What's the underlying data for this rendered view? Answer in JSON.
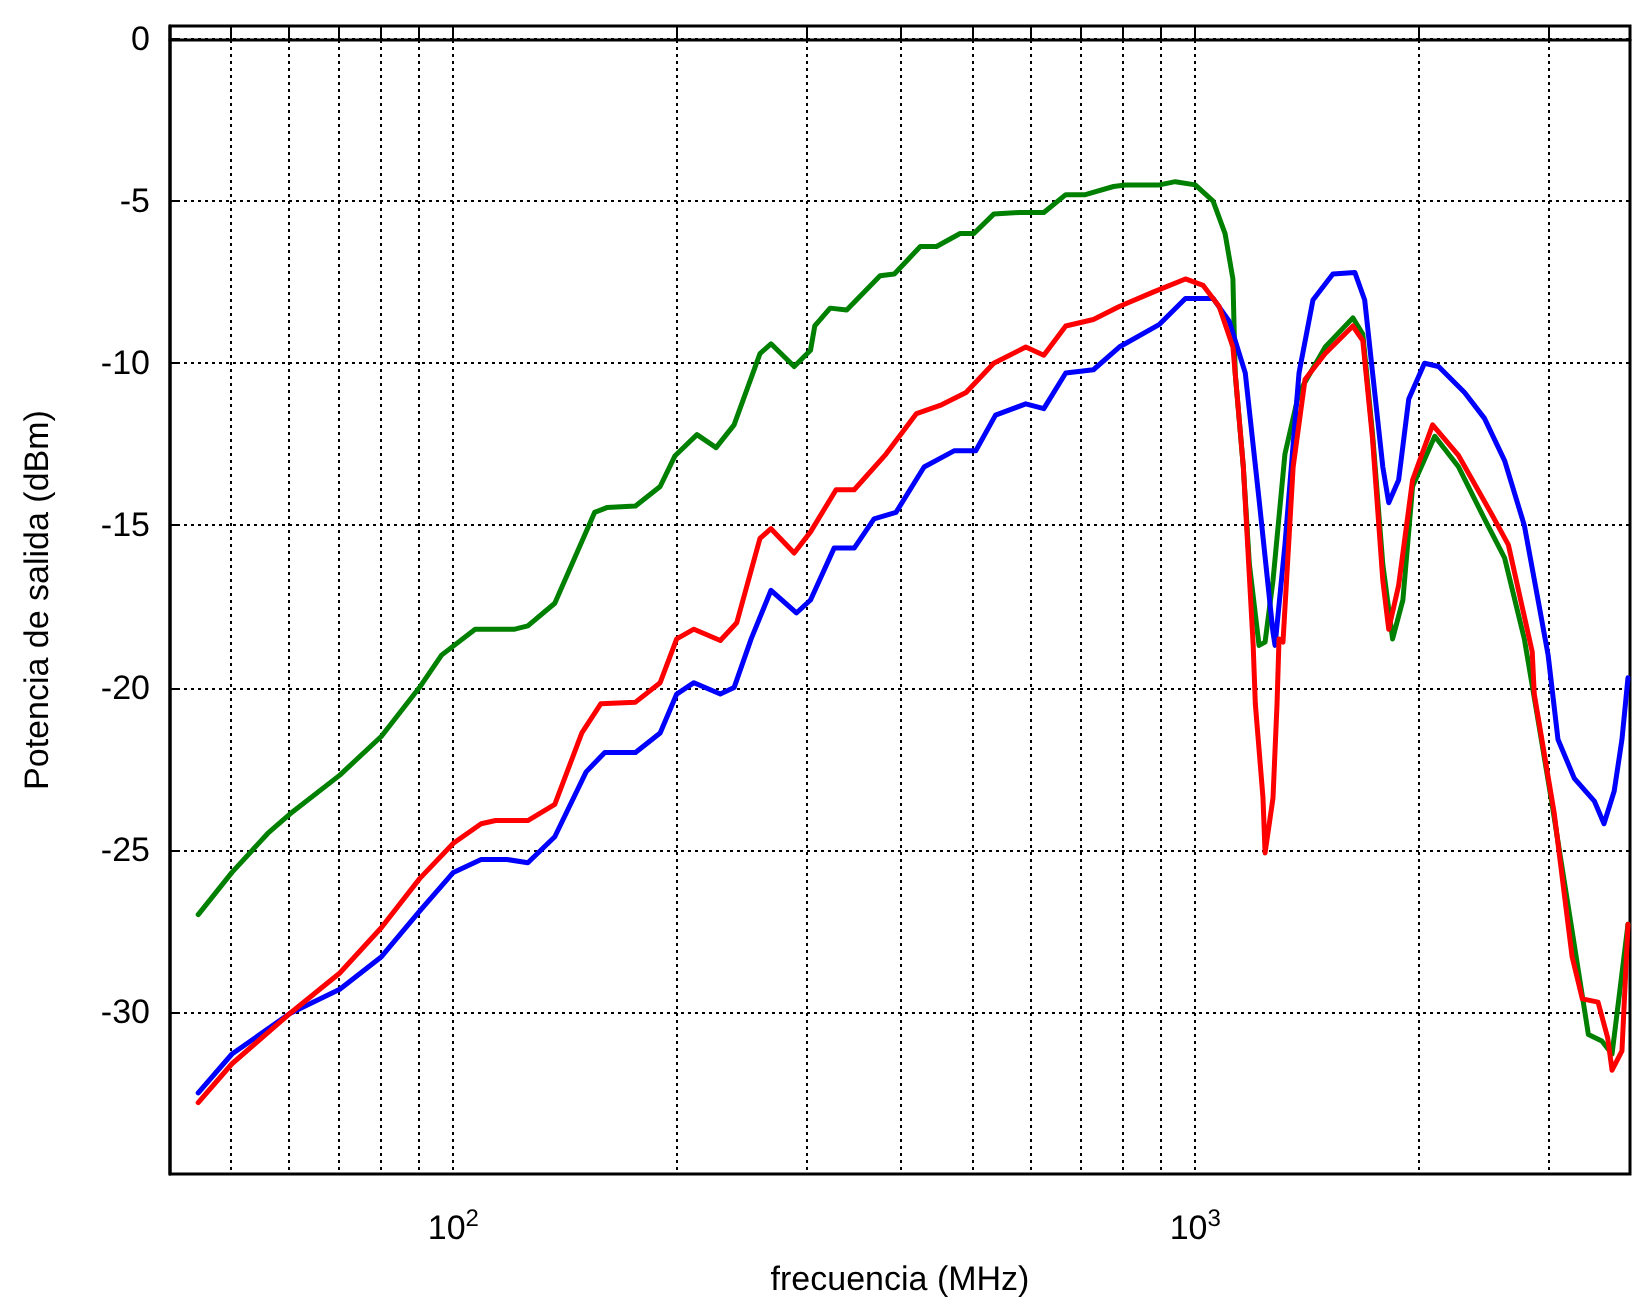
{
  "chart_data": {
    "type": "line",
    "xlabel": "frecuencia (MHz)",
    "ylabel": "Potencia de salida (dBm)",
    "log": "x",
    "grid": true,
    "marker": "none",
    "line_style": "solid",
    "xlim": [
      41.5,
      3855
    ],
    "ylim": [
      -35,
      0.4
    ],
    "xticks": [
      {
        "value": 50,
        "label": null
      },
      {
        "value": 60,
        "label": null
      },
      {
        "value": 70,
        "label": null
      },
      {
        "value": 80,
        "label": null
      },
      {
        "value": 90,
        "label": null
      },
      {
        "value": 100,
        "label": "10$^{2}$"
      },
      {
        "value": 200,
        "label": null
      },
      {
        "value": 300,
        "label": null
      },
      {
        "value": 400,
        "label": null
      },
      {
        "value": 500,
        "label": null
      },
      {
        "value": 600,
        "label": null
      },
      {
        "value": 700,
        "label": null
      },
      {
        "value": 800,
        "label": null
      },
      {
        "value": 900,
        "label": null
      },
      {
        "value": 1000,
        "label": "10$^{3}$"
      },
      {
        "value": 2000,
        "label": null
      },
      {
        "value": 3000,
        "label": null
      }
    ],
    "yticks": [
      0,
      -5,
      -10,
      -15,
      -20,
      -25,
      -30
    ],
    "series": [
      {
        "color": "#008000",
        "x": [
          45.3,
          50.3,
          56.2,
          60.2,
          70.3,
          80,
          90,
          96.4,
          107,
          121,
          126,
          137,
          155,
          161,
          176,
          190,
          199,
          213,
          226,
          239,
          259,
          268,
          288,
          303,
          307,
          322,
          339,
          376,
          393,
          426,
          448,
          482,
          503,
          535,
          580,
          625,
          669,
          711,
          776,
          805,
          895,
          940,
          1000,
          1057,
          1097,
          1124,
          1132,
          1161,
          1183,
          1219,
          1242,
          1273,
          1321,
          1380,
          1497,
          1631,
          1682,
          1734,
          1790,
          1845,
          1905,
          1963,
          2103,
          2265,
          2454,
          2612,
          2777,
          2898,
          3027,
          3221,
          3388,
          3532,
          3646,
          3831
        ],
        "values": [
          -27.0,
          -25.7,
          -24.5,
          -23.9,
          -22.7,
          -21.5,
          -20.0,
          -19.0,
          -18.2,
          -18.2,
          -18.1,
          -17.4,
          -14.6,
          -14.45,
          -14.4,
          -13.8,
          -12.85,
          -12.2,
          -12.6,
          -11.9,
          -9.7,
          -9.4,
          -10.1,
          -9.6,
          -8.85,
          -8.3,
          -8.36,
          -7.3,
          -7.25,
          -6.4,
          -6.4,
          -6.0,
          -6.0,
          -5.4,
          -5.35,
          -5.35,
          -4.8,
          -4.8,
          -4.55,
          -4.5,
          -4.5,
          -4.4,
          -4.5,
          -5.0,
          -6.0,
          -7.4,
          -10.3,
          -13.2,
          -16.2,
          -18.7,
          -18.6,
          -16.7,
          -12.8,
          -10.9,
          -9.5,
          -8.6,
          -9.1,
          -12.2,
          -16.2,
          -18.5,
          -17.3,
          -13.8,
          -12.25,
          -13.2,
          -14.8,
          -16.0,
          -18.5,
          -21.0,
          -23.6,
          -27.5,
          -30.7,
          -30.9,
          -31.3,
          -27.3
        ]
      },
      {
        "color": "#0000ff",
        "x": [
          45.3,
          50.3,
          60.2,
          70.3,
          80,
          90,
          100,
          109,
          118,
          126,
          137,
          151,
          160,
          176,
          190,
          200,
          211,
          229,
          239,
          252,
          268,
          290,
          303,
          326,
          347,
          369,
          395,
          431,
          473,
          506,
          538,
          591,
          625,
          669,
          729,
          790,
          895,
          970,
          1057,
          1111,
          1168,
          1219,
          1273,
          1281,
          1321,
          1380,
          1441,
          1533,
          1641,
          1692,
          1734,
          1790,
          1823,
          1880,
          1940,
          2037,
          2128,
          2307,
          2454,
          2612,
          2777,
          2898,
          2990,
          3083,
          3243,
          3451,
          3556,
          3670,
          3760,
          3831
        ],
        "values": [
          -32.5,
          -31.3,
          -30.05,
          -29.3,
          -28.3,
          -26.9,
          -25.7,
          -25.3,
          -25.3,
          -25.4,
          -24.6,
          -22.6,
          -22.0,
          -22.0,
          -21.4,
          -20.2,
          -19.85,
          -20.2,
          -20.0,
          -18.5,
          -17.0,
          -17.7,
          -17.3,
          -15.7,
          -15.7,
          -14.8,
          -14.6,
          -13.2,
          -12.7,
          -12.7,
          -11.6,
          -11.25,
          -11.4,
          -10.3,
          -10.2,
          -9.5,
          -8.8,
          -8.0,
          -8.0,
          -8.7,
          -10.3,
          -14.2,
          -18.3,
          -18.7,
          -15.6,
          -10.3,
          -8.05,
          -7.25,
          -7.2,
          -8.05,
          -10.3,
          -13.2,
          -14.3,
          -13.6,
          -11.1,
          -10.0,
          -10.1,
          -10.9,
          -11.7,
          -13.0,
          -15.0,
          -17.3,
          -19.0,
          -21.6,
          -22.8,
          -23.5,
          -24.2,
          -23.2,
          -21.6,
          -19.7
        ]
      },
      {
        "color": "#ff0000",
        "x": [
          45.3,
          50.3,
          60.2,
          70.3,
          80,
          90,
          100,
          109,
          114,
          126,
          137,
          149,
          158,
          176,
          190,
          200,
          211,
          229,
          241,
          259,
          268,
          288,
          303,
          328,
          347,
          383,
          421,
          453,
          491,
          535,
          591,
          625,
          669,
          729,
          790,
          879,
          970,
          1025,
          1077,
          1124,
          1161,
          1197,
          1205,
          1234,
          1242,
          1273,
          1289,
          1297,
          1313,
          1355,
          1406,
          1497,
          1631,
          1682,
          1734,
          1790,
          1823,
          1880,
          1963,
          2089,
          2265,
          2516,
          2643,
          2846,
          2864,
          3046,
          3221,
          3325,
          3491,
          3597,
          3646,
          3760,
          3831
        ],
        "values": [
          -32.8,
          -31.6,
          -30.05,
          -28.8,
          -27.4,
          -25.9,
          -24.8,
          -24.2,
          -24.1,
          -24.1,
          -23.6,
          -21.4,
          -20.5,
          -20.45,
          -19.85,
          -18.5,
          -18.2,
          -18.55,
          -18.0,
          -15.4,
          -15.1,
          -15.85,
          -15.2,
          -13.9,
          -13.9,
          -12.8,
          -11.55,
          -11.3,
          -10.9,
          -10.0,
          -9.5,
          -9.75,
          -8.85,
          -8.65,
          -8.25,
          -7.8,
          -7.4,
          -7.6,
          -8.25,
          -9.5,
          -13.2,
          -18.7,
          -20.5,
          -23.4,
          -25.1,
          -23.4,
          -20.5,
          -18.5,
          -18.6,
          -13.2,
          -10.5,
          -9.7,
          -8.85,
          -9.3,
          -12.35,
          -16.7,
          -18.2,
          -16.85,
          -13.6,
          -11.9,
          -12.85,
          -14.7,
          -15.6,
          -18.9,
          -20.2,
          -23.85,
          -28.3,
          -29.6,
          -29.7,
          -30.8,
          -31.8,
          -31.2,
          -27.3
        ]
      }
    ]
  }
}
